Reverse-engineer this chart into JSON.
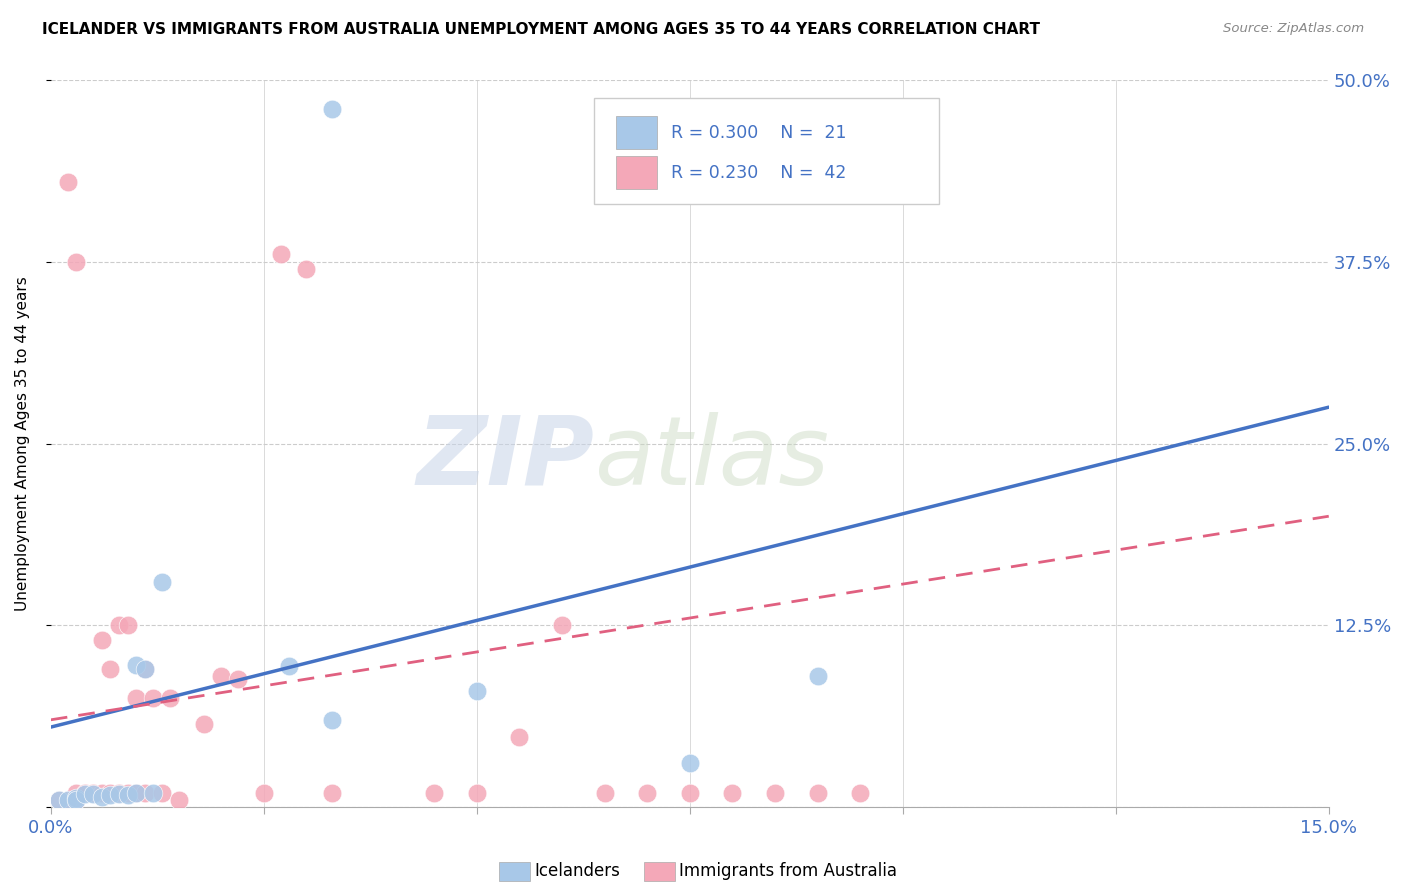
{
  "title": "ICELANDER VS IMMIGRANTS FROM AUSTRALIA UNEMPLOYMENT AMONG AGES 35 TO 44 YEARS CORRELATION CHART",
  "source": "Source: ZipAtlas.com",
  "ylabel": "Unemployment Among Ages 35 to 44 years",
  "xlim": [
    0.0,
    0.15
  ],
  "ylim": [
    0.0,
    0.5
  ],
  "xticks": [
    0.0,
    0.025,
    0.05,
    0.075,
    0.1,
    0.125,
    0.15
  ],
  "xtick_labels": [
    "0.0%",
    "",
    "",
    "",
    "",
    "",
    "15.0%"
  ],
  "ytick_labels": [
    "",
    "12.5%",
    "25.0%",
    "37.5%",
    "50.0%"
  ],
  "yticks": [
    0.0,
    0.125,
    0.25,
    0.375,
    0.5
  ],
  "blue_color": "#a8c8e8",
  "pink_color": "#f4a8b8",
  "blue_line_color": "#4472c4",
  "pink_line_color": "#e06080",
  "blue_trendline_x": [
    0.0,
    0.15
  ],
  "blue_trendline_y": [
    0.055,
    0.275
  ],
  "pink_trendline_x": [
    0.0,
    0.15
  ],
  "pink_trendline_y": [
    0.06,
    0.2
  ],
  "iceland_x": [
    0.001,
    0.002,
    0.003,
    0.003,
    0.004,
    0.005,
    0.006,
    0.007,
    0.008,
    0.009,
    0.01,
    0.01,
    0.011,
    0.012,
    0.013,
    0.028,
    0.033,
    0.05,
    0.075,
    0.09,
    0.033
  ],
  "iceland_y": [
    0.005,
    0.005,
    0.006,
    0.005,
    0.009,
    0.009,
    0.007,
    0.008,
    0.009,
    0.008,
    0.098,
    0.01,
    0.095,
    0.01,
    0.155,
    0.097,
    0.06,
    0.08,
    0.03,
    0.09,
    0.48
  ],
  "aus_x": [
    0.001,
    0.002,
    0.003,
    0.003,
    0.004,
    0.005,
    0.006,
    0.006,
    0.007,
    0.007,
    0.008,
    0.008,
    0.009,
    0.009,
    0.01,
    0.01,
    0.011,
    0.011,
    0.012,
    0.013,
    0.014,
    0.015,
    0.018,
    0.02,
    0.022,
    0.025,
    0.027,
    0.03,
    0.033,
    0.045,
    0.05,
    0.055,
    0.06,
    0.065,
    0.07,
    0.075,
    0.08,
    0.085,
    0.09,
    0.095,
    0.002,
    0.003
  ],
  "aus_y": [
    0.005,
    0.005,
    0.005,
    0.01,
    0.01,
    0.01,
    0.01,
    0.115,
    0.01,
    0.095,
    0.01,
    0.125,
    0.125,
    0.01,
    0.01,
    0.075,
    0.01,
    0.095,
    0.075,
    0.01,
    0.075,
    0.005,
    0.057,
    0.09,
    0.088,
    0.01,
    0.38,
    0.37,
    0.01,
    0.01,
    0.01,
    0.048,
    0.125,
    0.01,
    0.01,
    0.01,
    0.01,
    0.01,
    0.01,
    0.01,
    0.43,
    0.375
  ]
}
